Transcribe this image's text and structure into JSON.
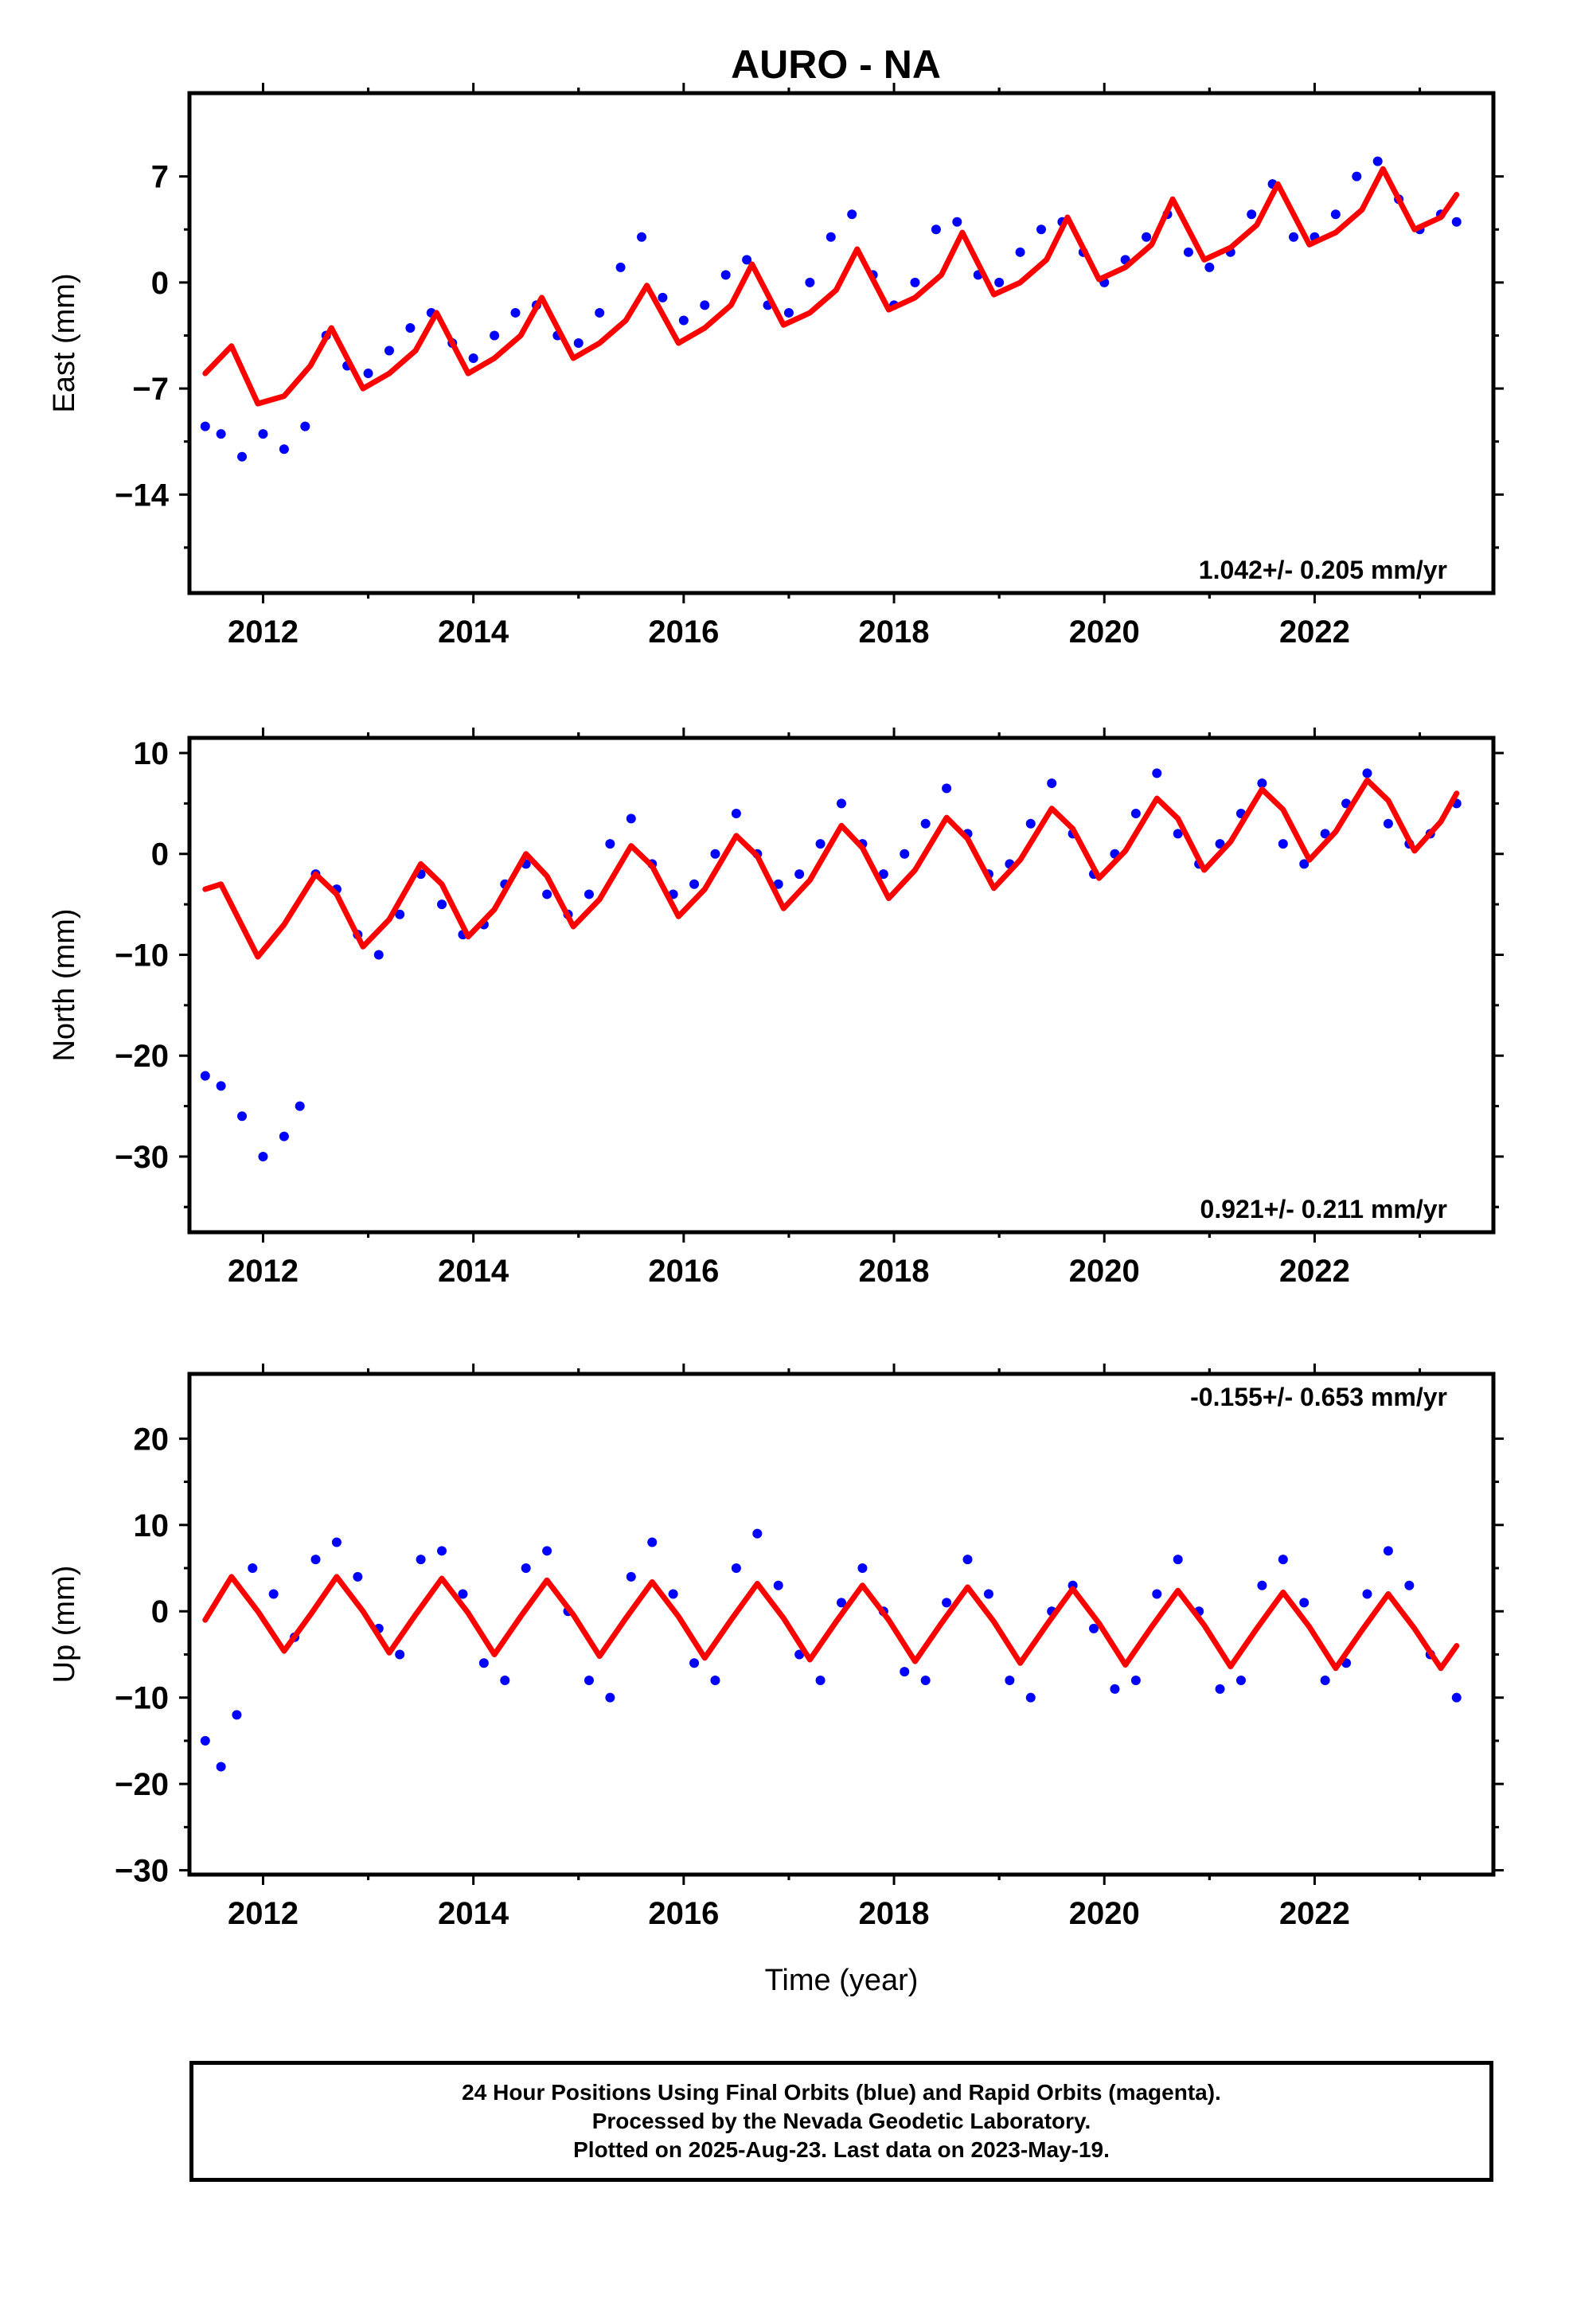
{
  "figure": {
    "title": "AURO - NA",
    "xlabel": "Time (year)"
  },
  "chart_data": [
    {
      "type": "scatter",
      "panel": "east",
      "ylabel": "East (mm)",
      "xlim": [
        2011.3,
        2023.7
      ],
      "ylim": [
        -20.5,
        12.5
      ],
      "xticks": [
        2012,
        2014,
        2016,
        2018,
        2020,
        2022
      ],
      "yticks": [
        7,
        0,
        -7,
        -14
      ],
      "rate_label": "1.042+/- 0.205 mm/yr",
      "rate_label_position": "bottom-right",
      "series": [
        {
          "color": "#0000ff",
          "x": [
            2011.45,
            2011.6,
            2011.8,
            2012.0,
            2012.2,
            2012.4,
            2012.6,
            2012.8,
            2013.0,
            2013.2,
            2013.4,
            2013.6,
            2013.8,
            2014.0,
            2014.2,
            2014.4,
            2014.6,
            2014.8,
            2015.0,
            2015.2,
            2015.4,
            2015.6,
            2015.8,
            2016.0,
            2016.2,
            2016.4,
            2016.6,
            2016.8,
            2017.0,
            2017.2,
            2017.4,
            2017.6,
            2017.8,
            2018.0,
            2018.2,
            2018.4,
            2018.6,
            2018.8,
            2019.0,
            2019.2,
            2019.4,
            2019.6,
            2019.8,
            2020.0,
            2020.2,
            2020.4,
            2020.6,
            2020.8,
            2021.0,
            2021.2,
            2021.4,
            2021.6,
            2021.8,
            2022.0,
            2022.2,
            2022.4,
            2022.6,
            2022.8,
            2023.0,
            2023.2,
            2023.35
          ],
          "y": [
            -9.5,
            -10.0,
            -11.5,
            -10.0,
            -11.0,
            -9.5,
            -3.5,
            -5.5,
            -6.0,
            -4.5,
            -3.0,
            -2.0,
            -4.0,
            -5.0,
            -3.5,
            -2.0,
            -1.5,
            -3.5,
            -4.0,
            -2.0,
            1.0,
            3.0,
            -1.0,
            -2.5,
            -1.5,
            0.5,
            1.5,
            -1.5,
            -2.0,
            0.0,
            3.0,
            4.5,
            0.5,
            -1.5,
            0.0,
            3.5,
            4.0,
            0.5,
            0.0,
            2.0,
            3.5,
            4.0,
            2.0,
            0.0,
            1.5,
            3.0,
            4.5,
            2.0,
            1.0,
            2.0,
            4.5,
            6.5,
            3.0,
            3.0,
            4.5,
            7.0,
            8.0,
            5.5,
            3.5,
            4.5,
            4.0
          ]
        },
        {
          "color": "#ff0000",
          "x": [
            2011.45,
            2011.7,
            2011.95,
            2012.2,
            2012.45,
            2012.65,
            2012.95,
            2013.2,
            2013.45,
            2013.65,
            2013.95,
            2014.2,
            2014.45,
            2014.65,
            2014.95,
            2015.2,
            2015.45,
            2015.65,
            2015.95,
            2016.2,
            2016.45,
            2016.65,
            2016.95,
            2017.2,
            2017.45,
            2017.65,
            2017.95,
            2018.2,
            2018.45,
            2018.65,
            2018.95,
            2019.2,
            2019.45,
            2019.65,
            2019.95,
            2020.2,
            2020.45,
            2020.65,
            2020.95,
            2021.2,
            2021.45,
            2021.65,
            2021.95,
            2022.2,
            2022.45,
            2022.65,
            2022.95,
            2023.2,
            2023.35
          ],
          "y": [
            -6.0,
            -4.2,
            -8.0,
            -7.5,
            -5.5,
            -3.0,
            -7.0,
            -6.0,
            -4.5,
            -2.0,
            -6.0,
            -5.0,
            -3.5,
            -1.0,
            -5.0,
            -4.0,
            -2.5,
            -0.2,
            -4.0,
            -3.0,
            -1.5,
            1.2,
            -2.8,
            -2.0,
            -0.5,
            2.2,
            -1.8,
            -1.0,
            0.5,
            3.3,
            -0.8,
            0.0,
            1.5,
            4.3,
            0.2,
            1.0,
            2.5,
            5.5,
            1.5,
            2.3,
            3.8,
            6.5,
            2.5,
            3.3,
            4.8,
            7.5,
            3.5,
            4.3,
            5.8
          ]
        }
      ]
    },
    {
      "type": "scatter",
      "panel": "north",
      "ylabel": "North (mm)",
      "xlim": [
        2011.3,
        2023.7
      ],
      "ylim": [
        -37.5,
        11.5
      ],
      "xticks": [
        2012,
        2014,
        2016,
        2018,
        2020,
        2022
      ],
      "yticks": [
        10,
        0,
        -10,
        -20,
        -30
      ],
      "rate_label": "0.921+/- 0.211 mm/yr",
      "rate_label_position": "bottom-right",
      "series": [
        {
          "color": "#0000ff",
          "x": [
            2011.45,
            2011.6,
            2011.8,
            2012.0,
            2012.2,
            2012.35,
            2012.5,
            2012.7,
            2012.9,
            2013.1,
            2013.3,
            2013.5,
            2013.7,
            2013.9,
            2014.1,
            2014.3,
            2014.5,
            2014.7,
            2014.9,
            2015.1,
            2015.3,
            2015.5,
            2015.7,
            2015.9,
            2016.1,
            2016.3,
            2016.5,
            2016.7,
            2016.9,
            2017.1,
            2017.3,
            2017.5,
            2017.7,
            2017.9,
            2018.1,
            2018.3,
            2018.5,
            2018.7,
            2018.9,
            2019.1,
            2019.3,
            2019.5,
            2019.7,
            2019.9,
            2020.1,
            2020.3,
            2020.5,
            2020.7,
            2020.9,
            2021.1,
            2021.3,
            2021.5,
            2021.7,
            2021.9,
            2022.1,
            2022.3,
            2022.5,
            2022.7,
            2022.9,
            2023.1,
            2023.35
          ],
          "y": [
            -22.0,
            -23.0,
            -26.0,
            -30.0,
            -28.0,
            -25.0,
            -2.0,
            -3.5,
            -8.0,
            -10.0,
            -6.0,
            -2.0,
            -5.0,
            -8.0,
            -7.0,
            -3.0,
            -1.0,
            -4.0,
            -6.0,
            -4.0,
            1.0,
            3.5,
            -1.0,
            -4.0,
            -3.0,
            0.0,
            4.0,
            0.0,
            -3.0,
            -2.0,
            1.0,
            5.0,
            1.0,
            -2.0,
            0.0,
            3.0,
            6.5,
            2.0,
            -2.0,
            -1.0,
            3.0,
            7.0,
            2.0,
            -2.0,
            0.0,
            4.0,
            8.0,
            2.0,
            -1.0,
            1.0,
            4.0,
            7.0,
            1.0,
            -1.0,
            2.0,
            5.0,
            8.0,
            3.0,
            1.0,
            2.0,
            5.0
          ]
        },
        {
          "color": "#ff0000",
          "x": [
            2011.45,
            2011.6,
            2011.95,
            2012.2,
            2012.5,
            2012.7,
            2012.95,
            2013.2,
            2013.5,
            2013.7,
            2013.95,
            2014.2,
            2014.5,
            2014.7,
            2014.95,
            2015.2,
            2015.5,
            2015.7,
            2015.95,
            2016.2,
            2016.5,
            2016.7,
            2016.95,
            2017.2,
            2017.5,
            2017.7,
            2017.95,
            2018.2,
            2018.5,
            2018.7,
            2018.95,
            2019.2,
            2019.5,
            2019.7,
            2019.95,
            2020.2,
            2020.5,
            2020.7,
            2020.95,
            2021.2,
            2021.5,
            2021.7,
            2021.95,
            2022.2,
            2022.5,
            2022.7,
            2022.95,
            2023.2,
            2023.35
          ],
          "y": [
            -3.5,
            -3.0,
            -10.2,
            -7.0,
            -2.0,
            -4.0,
            -9.2,
            -6.5,
            -1.0,
            -3.0,
            -8.2,
            -5.5,
            0.0,
            -2.2,
            -7.2,
            -4.5,
            0.8,
            -1.2,
            -6.2,
            -3.5,
            1.8,
            -0.2,
            -5.4,
            -2.6,
            2.8,
            0.6,
            -4.4,
            -1.6,
            3.6,
            1.5,
            -3.4,
            -0.6,
            4.5,
            2.5,
            -2.4,
            0.3,
            5.5,
            3.5,
            -1.6,
            1.2,
            6.4,
            4.4,
            -0.6,
            2.2,
            7.3,
            5.3,
            0.3,
            3.2,
            6.0
          ]
        }
      ]
    },
    {
      "type": "scatter",
      "panel": "up",
      "ylabel": "Up (mm)",
      "xlim": [
        2011.3,
        2023.7
      ],
      "ylim": [
        -30.5,
        27.5
      ],
      "xticks": [
        2012,
        2014,
        2016,
        2018,
        2020,
        2022
      ],
      "yticks": [
        20,
        10,
        0,
        -10,
        -20,
        -30
      ],
      "rate_label": "-0.155+/- 0.653 mm/yr",
      "rate_label_position": "top-right",
      "series": [
        {
          "color": "#0000ff",
          "x": [
            2011.45,
            2011.6,
            2011.75,
            2011.9,
            2012.1,
            2012.3,
            2012.5,
            2012.7,
            2012.9,
            2013.1,
            2013.3,
            2013.5,
            2013.7,
            2013.9,
            2014.1,
            2014.3,
            2014.5,
            2014.7,
            2014.9,
            2015.1,
            2015.3,
            2015.5,
            2015.7,
            2015.9,
            2016.1,
            2016.3,
            2016.5,
            2016.7,
            2016.9,
            2017.1,
            2017.3,
            2017.5,
            2017.7,
            2017.9,
            2018.1,
            2018.3,
            2018.5,
            2018.7,
            2018.9,
            2019.1,
            2019.3,
            2019.5,
            2019.7,
            2019.9,
            2020.1,
            2020.3,
            2020.5,
            2020.7,
            2020.9,
            2021.1,
            2021.3,
            2021.5,
            2021.7,
            2021.9,
            2022.1,
            2022.3,
            2022.5,
            2022.7,
            2022.9,
            2023.1,
            2023.35
          ],
          "y": [
            -15.0,
            -18.0,
            -12.0,
            5.0,
            2.0,
            -3.0,
            6.0,
            8.0,
            4.0,
            -2.0,
            -5.0,
            6.0,
            7.0,
            2.0,
            -6.0,
            -8.0,
            5.0,
            7.0,
            0.0,
            -8.0,
            -10.0,
            4.0,
            8.0,
            2.0,
            -6.0,
            -8.0,
            5.0,
            9.0,
            3.0,
            -5.0,
            -8.0,
            1.0,
            5.0,
            0.0,
            -7.0,
            -8.0,
            1.0,
            6.0,
            2.0,
            -8.0,
            -10.0,
            0.0,
            3.0,
            -2.0,
            -9.0,
            -8.0,
            2.0,
            6.0,
            0.0,
            -9.0,
            -8.0,
            3.0,
            6.0,
            1.0,
            -8.0,
            -6.0,
            2.0,
            7.0,
            3.0,
            -5.0,
            -10.0
          ]
        },
        {
          "color": "#ff0000",
          "x": [
            2011.45,
            2011.7,
            2011.95,
            2012.2,
            2012.45,
            2012.7,
            2012.95,
            2013.2,
            2013.45,
            2013.7,
            2013.95,
            2014.2,
            2014.45,
            2014.7,
            2014.95,
            2015.2,
            2015.45,
            2015.7,
            2015.95,
            2016.2,
            2016.45,
            2016.7,
            2016.95,
            2017.2,
            2017.45,
            2017.7,
            2017.95,
            2018.2,
            2018.45,
            2018.7,
            2018.95,
            2019.2,
            2019.45,
            2019.7,
            2019.95,
            2020.2,
            2020.45,
            2020.7,
            2020.95,
            2021.2,
            2021.45,
            2021.7,
            2021.95,
            2022.2,
            2022.45,
            2022.7,
            2022.95,
            2023.2,
            2023.35
          ],
          "y": [
            -1.0,
            4.0,
            0.0,
            -4.6,
            -0.4,
            4.0,
            0.0,
            -4.8,
            -0.4,
            3.8,
            -0.2,
            -5.0,
            -0.6,
            3.6,
            -0.4,
            -5.2,
            -0.8,
            3.4,
            -0.6,
            -5.4,
            -1.0,
            3.2,
            -0.8,
            -5.6,
            -1.2,
            3.0,
            -1.0,
            -5.8,
            -1.4,
            2.8,
            -1.2,
            -6.0,
            -1.6,
            2.6,
            -1.4,
            -6.2,
            -1.8,
            2.4,
            -1.6,
            -6.4,
            -2.0,
            2.2,
            -1.8,
            -6.6,
            -2.2,
            2.0,
            -2.0,
            -6.6,
            -4.0
          ]
        }
      ]
    }
  ],
  "notes": {
    "line1": "24 Hour Positions Using Final Orbits (blue) and Rapid Orbits (magenta).",
    "line2": "Processed by the Nevada Geodetic Laboratory.",
    "line3": "Plotted on 2025-Aug-23. Last data on 2023-May-19."
  }
}
